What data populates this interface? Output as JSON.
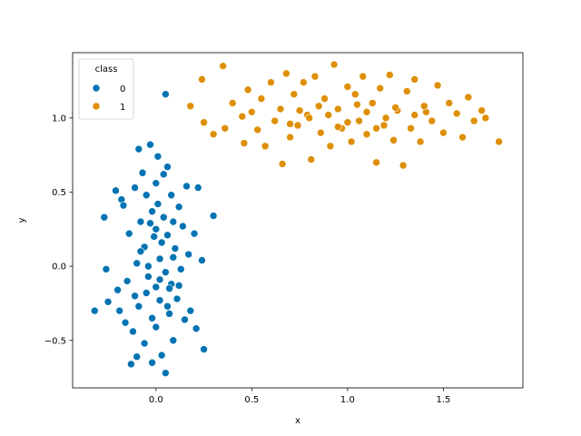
{
  "chart_data": {
    "type": "scatter",
    "title": "",
    "xlabel": "x",
    "ylabel": "y",
    "xlim": [
      -0.435,
      1.915
    ],
    "ylim": [
      -0.82,
      1.44
    ],
    "xticks": [
      0.0,
      0.5,
      1.0,
      1.5
    ],
    "xtick_labels": [
      "0.0",
      "0.5",
      "1.0",
      "1.5"
    ],
    "yticks": [
      -0.5,
      0.0,
      0.5,
      1.0
    ],
    "ytick_labels": [
      "−0.5",
      "0.0",
      "0.5",
      "1.0"
    ],
    "grid": false,
    "legend": {
      "title": "class",
      "placement": "top-left",
      "entries": [
        "0",
        "1"
      ]
    },
    "colors": [
      "#0173b2",
      "#de8f05"
    ],
    "series": [
      {
        "name": "0",
        "color": "#0173b2",
        "points": [
          [
            -0.32,
            -0.3
          ],
          [
            -0.27,
            0.33
          ],
          [
            -0.26,
            -0.02
          ],
          [
            -0.25,
            -0.24
          ],
          [
            -0.21,
            0.51
          ],
          [
            -0.2,
            -0.16
          ],
          [
            -0.19,
            -0.3
          ],
          [
            -0.18,
            0.45
          ],
          [
            -0.17,
            0.41
          ],
          [
            -0.16,
            -0.38
          ],
          [
            -0.15,
            -0.1
          ],
          [
            -0.14,
            0.22
          ],
          [
            -0.13,
            -0.66
          ],
          [
            -0.12,
            -0.44
          ],
          [
            -0.11,
            0.53
          ],
          [
            -0.1,
            0.02
          ],
          [
            -0.1,
            -0.61
          ],
          [
            -0.09,
            0.79
          ],
          [
            -0.09,
            -0.27
          ],
          [
            -0.08,
            0.3
          ],
          [
            -0.07,
            0.63
          ],
          [
            -0.06,
            0.13
          ],
          [
            -0.06,
            -0.52
          ],
          [
            -0.05,
            0.48
          ],
          [
            -0.04,
            -0.07
          ],
          [
            -0.03,
            0.82
          ],
          [
            -0.03,
            0.29
          ],
          [
            -0.02,
            -0.35
          ],
          [
            -0.02,
            -0.65
          ],
          [
            -0.01,
            0.2
          ],
          [
            0.0,
            0.56
          ],
          [
            0.0,
            -0.14
          ],
          [
            0.01,
            0.74
          ],
          [
            0.01,
            0.42
          ],
          [
            0.02,
            0.05
          ],
          [
            0.02,
            -0.23
          ],
          [
            0.03,
            -0.6
          ],
          [
            0.04,
            0.62
          ],
          [
            0.04,
            0.33
          ],
          [
            0.05,
            -0.04
          ],
          [
            0.05,
            1.16
          ],
          [
            0.06,
            0.67
          ],
          [
            0.06,
            0.21
          ],
          [
            0.07,
            -0.32
          ],
          [
            0.08,
            0.48
          ],
          [
            0.08,
            -0.12
          ],
          [
            0.09,
            0.3
          ],
          [
            0.09,
            -0.5
          ],
          [
            0.1,
            0.12
          ],
          [
            0.11,
            -0.22
          ],
          [
            0.12,
            0.4
          ],
          [
            0.13,
            -0.02
          ],
          [
            0.14,
            0.27
          ],
          [
            0.15,
            -0.36
          ],
          [
            0.16,
            0.54
          ],
          [
            0.17,
            0.08
          ],
          [
            0.18,
            -0.3
          ],
          [
            0.2,
            0.22
          ],
          [
            0.21,
            -0.42
          ],
          [
            0.22,
            0.53
          ],
          [
            0.24,
            0.04
          ],
          [
            0.25,
            -0.56
          ],
          [
            0.3,
            0.34
          ],
          [
            -0.08,
            0.1
          ],
          [
            -0.05,
            -0.18
          ],
          [
            -0.02,
            0.37
          ],
          [
            0.0,
            -0.41
          ],
          [
            0.03,
            0.16
          ],
          [
            0.06,
            -0.27
          ],
          [
            0.09,
            0.06
          ],
          [
            0.12,
            -0.13
          ],
          [
            0.0,
            0.25
          ],
          [
            0.02,
            -0.09
          ],
          [
            -0.04,
            0.0
          ],
          [
            0.05,
            -0.72
          ],
          [
            0.07,
            -0.15
          ],
          [
            -0.11,
            -0.2
          ]
        ]
      },
      {
        "name": "1",
        "color": "#de8f05",
        "points": [
          [
            0.18,
            1.08
          ],
          [
            0.24,
            1.26
          ],
          [
            0.25,
            0.97
          ],
          [
            0.3,
            0.89
          ],
          [
            0.35,
            1.35
          ],
          [
            0.36,
            0.93
          ],
          [
            0.4,
            1.1
          ],
          [
            0.45,
            1.01
          ],
          [
            0.46,
            0.83
          ],
          [
            0.48,
            1.19
          ],
          [
            0.5,
            1.04
          ],
          [
            0.53,
            0.92
          ],
          [
            0.55,
            1.13
          ],
          [
            0.57,
            0.81
          ],
          [
            0.6,
            1.24
          ],
          [
            0.62,
            0.98
          ],
          [
            0.65,
            1.06
          ],
          [
            0.66,
            0.69
          ],
          [
            0.68,
            1.3
          ],
          [
            0.7,
            0.87
          ],
          [
            0.72,
            1.16
          ],
          [
            0.74,
            0.95
          ],
          [
            0.77,
            1.24
          ],
          [
            0.79,
            1.02
          ],
          [
            0.81,
            0.72
          ],
          [
            0.83,
            1.28
          ],
          [
            0.86,
            0.9
          ],
          [
            0.88,
            1.13
          ],
          [
            0.91,
            0.81
          ],
          [
            0.93,
            1.36
          ],
          [
            0.95,
            1.06
          ],
          [
            0.97,
            0.93
          ],
          [
            1.0,
            1.21
          ],
          [
            1.02,
            0.84
          ],
          [
            1.04,
            1.16
          ],
          [
            1.06,
            0.98
          ],
          [
            1.08,
            1.28
          ],
          [
            1.1,
            0.89
          ],
          [
            1.13,
            1.1
          ],
          [
            1.15,
            0.7
          ],
          [
            1.17,
            1.2
          ],
          [
            1.19,
            0.95
          ],
          [
            1.22,
            1.29
          ],
          [
            1.24,
            0.85
          ],
          [
            1.26,
            1.05
          ],
          [
            1.29,
            0.68
          ],
          [
            1.31,
            1.18
          ],
          [
            1.33,
            0.93
          ],
          [
            1.35,
            1.26
          ],
          [
            1.38,
            0.84
          ],
          [
            1.41,
            1.04
          ],
          [
            1.44,
            0.98
          ],
          [
            1.47,
            1.22
          ],
          [
            1.5,
            0.9
          ],
          [
            1.53,
            1.1
          ],
          [
            1.57,
            1.03
          ],
          [
            1.6,
            0.87
          ],
          [
            1.63,
            1.14
          ],
          [
            1.66,
            0.98
          ],
          [
            1.7,
            1.05
          ],
          [
            1.72,
            1.0
          ],
          [
            1.79,
            0.84
          ],
          [
            0.8,
            1.0
          ],
          [
            0.9,
            1.02
          ],
          [
            1.0,
            0.97
          ],
          [
            1.1,
            1.04
          ],
          [
            1.2,
            1.0
          ],
          [
            0.85,
            1.08
          ],
          [
            0.95,
            0.94
          ],
          [
            1.05,
            1.09
          ],
          [
            1.15,
            0.93
          ],
          [
            1.25,
            1.07
          ],
          [
            0.75,
            1.05
          ],
          [
            1.35,
            1.02
          ],
          [
            0.7,
            0.96
          ],
          [
            1.4,
            1.08
          ]
        ]
      }
    ]
  }
}
